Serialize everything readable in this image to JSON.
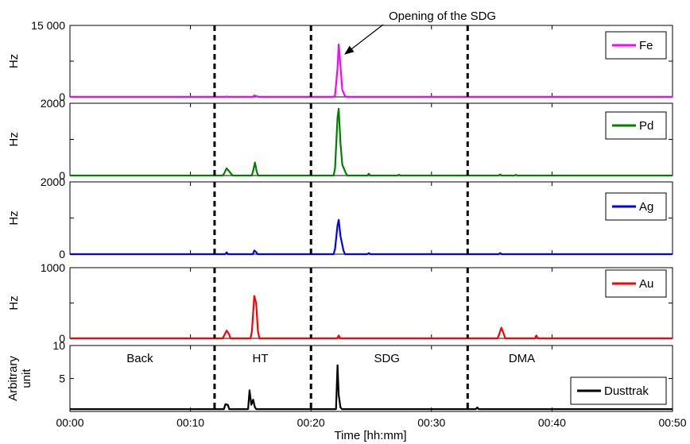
{
  "chart_data": {
    "type": "line",
    "xlabel": "Time [hh:mm]",
    "xlim": [
      0,
      50
    ],
    "x_ticks": [
      0,
      10,
      20,
      30,
      40,
      50
    ],
    "x_tick_labels": [
      "00:00",
      "00:10",
      "00:20",
      "00:30",
      "00:40",
      "00:50"
    ],
    "phase_boundaries": [
      12,
      20,
      33
    ],
    "phase_labels": [
      {
        "text": "Back",
        "x": 5.8
      },
      {
        "text": "HT",
        "x": 15.8
      },
      {
        "text": "SDG",
        "x": 26.3
      },
      {
        "text": "DMA",
        "x": 37.5
      }
    ],
    "annotation": {
      "text": "Opening of the SDG",
      "target_x": 22.3,
      "panel": 0
    },
    "legend_position": "right",
    "panels": [
      {
        "ylabel": "Hz",
        "ylim": [
          0,
          15000
        ],
        "yticks": [
          0,
          15000
        ],
        "ytick_labels": [
          "0",
          "15 000"
        ],
        "series": {
          "name": "Fe",
          "color": "#ff00ff",
          "baseline": 0,
          "points": [
            [
              13.0,
              60
            ],
            [
              15.3,
              300
            ],
            [
              15.5,
              120
            ],
            [
              22.0,
              300
            ],
            [
              22.2,
              6000
            ],
            [
              22.3,
              11000
            ],
            [
              22.4,
              8000
            ],
            [
              22.6,
              1500
            ],
            [
              22.8,
              300
            ]
          ]
        }
      },
      {
        "ylabel": "Hz",
        "ylim": [
          0,
          2000
        ],
        "yticks": [
          0,
          2000
        ],
        "ytick_labels": [
          "0",
          "2000"
        ],
        "series": {
          "name": "Pd",
          "color": "#007f00",
          "baseline": 0,
          "points": [
            [
              12.8,
              60
            ],
            [
              13.0,
              200
            ],
            [
              13.2,
              120
            ],
            [
              13.4,
              40
            ],
            [
              15.2,
              120
            ],
            [
              15.35,
              360
            ],
            [
              15.5,
              100
            ],
            [
              22.0,
              200
            ],
            [
              22.2,
              1600
            ],
            [
              22.3,
              1850
            ],
            [
              22.45,
              900
            ],
            [
              22.6,
              300
            ],
            [
              22.9,
              60
            ],
            [
              24.8,
              50
            ],
            [
              27.3,
              25
            ],
            [
              35.7,
              30
            ],
            [
              37.0,
              20
            ]
          ]
        }
      },
      {
        "ylabel": "Hz",
        "ylim": [
          0,
          2000
        ],
        "yticks": [
          0,
          2000
        ],
        "ytick_labels": [
          "0",
          "2000"
        ],
        "series": {
          "name": "Ag",
          "color": "#0000ff",
          "baseline": 0,
          "points": [
            [
              13.0,
              50
            ],
            [
              15.3,
              100
            ],
            [
              15.45,
              60
            ],
            [
              22.0,
              150
            ],
            [
              22.2,
              800
            ],
            [
              22.3,
              950
            ],
            [
              22.45,
              500
            ],
            [
              22.7,
              100
            ],
            [
              24.8,
              30
            ],
            [
              35.7,
              30
            ]
          ]
        }
      },
      {
        "ylabel": "Hz",
        "ylim": [
          0,
          1000
        ],
        "yticks": [
          0,
          1000
        ],
        "ytick_labels": [
          "0",
          "1000"
        ],
        "series": {
          "name": "Au",
          "color": "#ff0000",
          "baseline": 0,
          "points": [
            [
              12.8,
              40
            ],
            [
              13.0,
              110
            ],
            [
              13.2,
              60
            ],
            [
              15.1,
              100
            ],
            [
              15.3,
              600
            ],
            [
              15.45,
              500
            ],
            [
              15.6,
              100
            ],
            [
              22.3,
              40
            ],
            [
              35.6,
              50
            ],
            [
              35.8,
              150
            ],
            [
              36.0,
              60
            ],
            [
              38.7,
              40
            ]
          ]
        }
      },
      {
        "ylabel": "Arbitrary unit",
        "ylim": [
          0,
          10
        ],
        "yticks": [
          5,
          10
        ],
        "ytick_labels": [
          "5",
          "10"
        ],
        "series": {
          "name": "Dusttrak",
          "color": "#000000",
          "baseline": 0.35,
          "points": [
            [
              12.9,
              1.1
            ],
            [
              13.1,
              1.0
            ],
            [
              14.9,
              3.2
            ],
            [
              15.05,
              1.0
            ],
            [
              15.2,
              1.8
            ],
            [
              15.35,
              0.6
            ],
            [
              22.2,
              7.0
            ],
            [
              22.3,
              2.5
            ],
            [
              22.45,
              0.6
            ],
            [
              33.8,
              0.6
            ]
          ]
        }
      }
    ]
  }
}
